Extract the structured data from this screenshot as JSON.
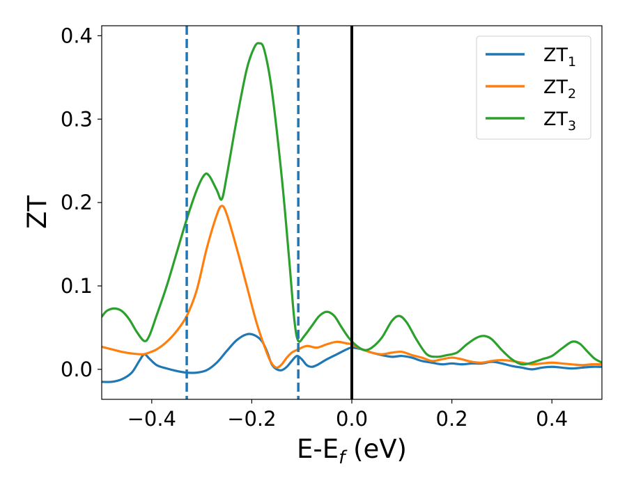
{
  "chart_data": {
    "type": "line",
    "xlabel": "E-E",
    "xlabel_sub": "f",
    "xlabel_unit": " (eV)",
    "ylabel": "ZT",
    "xlim": [
      -0.5,
      0.5
    ],
    "ylim": [
      -0.036,
      0.412
    ],
    "xticks": [
      -0.4,
      -0.2,
      0.0,
      0.2,
      0.4
    ],
    "xtick_labels": [
      "−0.4",
      "−0.2",
      "0.0",
      "0.2",
      "0.4"
    ],
    "yticks": [
      0.0,
      0.1,
      0.2,
      0.3,
      0.4
    ],
    "ytick_labels": [
      "0.0",
      "0.1",
      "0.2",
      "0.3",
      "0.4"
    ],
    "grid": false,
    "legend_position": "top-right",
    "vlines": [
      {
        "x": -0.33,
        "style": "dashed",
        "color": "#1f77b4"
      },
      {
        "x": -0.107,
        "style": "dashed",
        "color": "#1f77b4"
      },
      {
        "x": 0.0,
        "style": "solid",
        "color": "#000000"
      }
    ],
    "series": [
      {
        "name": "ZT",
        "name_sub": "1",
        "color": "#1f77b4",
        "points": [
          [
            -0.5,
            -0.015
          ],
          [
            -0.48,
            -0.015
          ],
          [
            -0.46,
            -0.012
          ],
          [
            -0.44,
            -0.004
          ],
          [
            -0.425,
            0.01
          ],
          [
            -0.415,
            0.018
          ],
          [
            -0.405,
            0.013
          ],
          [
            -0.39,
            0.005
          ],
          [
            -0.37,
            0.001
          ],
          [
            -0.35,
            -0.002
          ],
          [
            -0.33,
            -0.004
          ],
          [
            -0.31,
            -0.004
          ],
          [
            -0.29,
            -0.001
          ],
          [
            -0.27,
            0.008
          ],
          [
            -0.25,
            0.022
          ],
          [
            -0.23,
            0.035
          ],
          [
            -0.21,
            0.042
          ],
          [
            -0.195,
            0.041
          ],
          [
            -0.18,
            0.034
          ],
          [
            -0.17,
            0.022
          ],
          [
            -0.16,
            0.006
          ],
          [
            -0.15,
            0.0
          ],
          [
            -0.14,
            -0.001
          ],
          [
            -0.13,
            0.003
          ],
          [
            -0.12,
            0.01
          ],
          [
            -0.11,
            0.016
          ],
          [
            -0.1,
            0.012
          ],
          [
            -0.09,
            0.005
          ],
          [
            -0.08,
            0.003
          ],
          [
            -0.07,
            0.005
          ],
          [
            -0.05,
            0.012
          ],
          [
            -0.03,
            0.018
          ],
          [
            -0.01,
            0.024
          ],
          [
            0.0,
            0.026
          ],
          [
            0.02,
            0.024
          ],
          [
            0.04,
            0.02
          ],
          [
            0.06,
            0.017
          ],
          [
            0.08,
            0.015
          ],
          [
            0.1,
            0.016
          ],
          [
            0.12,
            0.014
          ],
          [
            0.14,
            0.01
          ],
          [
            0.16,
            0.008
          ],
          [
            0.18,
            0.006
          ],
          [
            0.2,
            0.007
          ],
          [
            0.22,
            0.006
          ],
          [
            0.24,
            0.007
          ],
          [
            0.26,
            0.007
          ],
          [
            0.28,
            0.009
          ],
          [
            0.3,
            0.007
          ],
          [
            0.32,
            0.004
          ],
          [
            0.34,
            0.002
          ],
          [
            0.36,
            0.0
          ],
          [
            0.38,
            0.002
          ],
          [
            0.4,
            0.003
          ],
          [
            0.42,
            0.002
          ],
          [
            0.44,
            0.001
          ],
          [
            0.46,
            0.002
          ],
          [
            0.48,
            0.003
          ],
          [
            0.5,
            0.003
          ]
        ]
      },
      {
        "name": "ZT",
        "name_sub": "2",
        "color": "#ff7f0e",
        "points": [
          [
            -0.5,
            0.027
          ],
          [
            -0.48,
            0.024
          ],
          [
            -0.46,
            0.021
          ],
          [
            -0.44,
            0.019
          ],
          [
            -0.42,
            0.018
          ],
          [
            -0.41,
            0.019
          ],
          [
            -0.39,
            0.024
          ],
          [
            -0.37,
            0.033
          ],
          [
            -0.35,
            0.046
          ],
          [
            -0.33,
            0.064
          ],
          [
            -0.31,
            0.095
          ],
          [
            -0.29,
            0.145
          ],
          [
            -0.27,
            0.185
          ],
          [
            -0.26,
            0.196
          ],
          [
            -0.25,
            0.186
          ],
          [
            -0.23,
            0.145
          ],
          [
            -0.21,
            0.1
          ],
          [
            -0.19,
            0.055
          ],
          [
            -0.17,
            0.02
          ],
          [
            -0.16,
            0.007
          ],
          [
            -0.15,
            0.002
          ],
          [
            -0.14,
            0.006
          ],
          [
            -0.13,
            0.014
          ],
          [
            -0.12,
            0.02
          ],
          [
            -0.107,
            0.024
          ],
          [
            -0.09,
            0.028
          ],
          [
            -0.07,
            0.026
          ],
          [
            -0.05,
            0.03
          ],
          [
            -0.03,
            0.033
          ],
          [
            -0.01,
            0.031
          ],
          [
            0.0,
            0.03
          ],
          [
            0.02,
            0.024
          ],
          [
            0.04,
            0.02
          ],
          [
            0.06,
            0.018
          ],
          [
            0.08,
            0.02
          ],
          [
            0.1,
            0.021
          ],
          [
            0.12,
            0.017
          ],
          [
            0.14,
            0.014
          ],
          [
            0.16,
            0.01
          ],
          [
            0.18,
            0.012
          ],
          [
            0.2,
            0.014
          ],
          [
            0.22,
            0.012
          ],
          [
            0.24,
            0.009
          ],
          [
            0.26,
            0.008
          ],
          [
            0.28,
            0.01
          ],
          [
            0.3,
            0.011
          ],
          [
            0.32,
            0.01
          ],
          [
            0.34,
            0.008
          ],
          [
            0.36,
            0.006
          ],
          [
            0.38,
            0.007
          ],
          [
            0.4,
            0.008
          ],
          [
            0.42,
            0.007
          ],
          [
            0.44,
            0.006
          ],
          [
            0.46,
            0.005
          ],
          [
            0.48,
            0.006
          ],
          [
            0.5,
            0.006
          ]
        ]
      },
      {
        "name": "ZT",
        "name_sub": "3",
        "color": "#2ca02c",
        "points": [
          [
            -0.5,
            0.063
          ],
          [
            -0.49,
            0.07
          ],
          [
            -0.475,
            0.073
          ],
          [
            -0.46,
            0.07
          ],
          [
            -0.445,
            0.06
          ],
          [
            -0.43,
            0.045
          ],
          [
            -0.415,
            0.034
          ],
          [
            -0.405,
            0.04
          ],
          [
            -0.39,
            0.065
          ],
          [
            -0.37,
            0.1
          ],
          [
            -0.35,
            0.14
          ],
          [
            -0.33,
            0.18
          ],
          [
            -0.31,
            0.215
          ],
          [
            -0.295,
            0.233
          ],
          [
            -0.285,
            0.232
          ],
          [
            -0.27,
            0.215
          ],
          [
            -0.26,
            0.204
          ],
          [
            -0.25,
            0.232
          ],
          [
            -0.23,
            0.3
          ],
          [
            -0.21,
            0.36
          ],
          [
            -0.195,
            0.386
          ],
          [
            -0.185,
            0.391
          ],
          [
            -0.175,
            0.383
          ],
          [
            -0.16,
            0.335
          ],
          [
            -0.14,
            0.23
          ],
          [
            -0.125,
            0.13
          ],
          [
            -0.115,
            0.06
          ],
          [
            -0.107,
            0.034
          ],
          [
            -0.095,
            0.04
          ],
          [
            -0.08,
            0.052
          ],
          [
            -0.065,
            0.064
          ],
          [
            -0.05,
            0.069
          ],
          [
            -0.035,
            0.064
          ],
          [
            -0.02,
            0.05
          ],
          [
            -0.005,
            0.037
          ],
          [
            0.01,
            0.028
          ],
          [
            0.025,
            0.023
          ],
          [
            0.04,
            0.026
          ],
          [
            0.06,
            0.038
          ],
          [
            0.08,
            0.058
          ],
          [
            0.095,
            0.064
          ],
          [
            0.11,
            0.056
          ],
          [
            0.13,
            0.035
          ],
          [
            0.15,
            0.018
          ],
          [
            0.17,
            0.015
          ],
          [
            0.19,
            0.017
          ],
          [
            0.21,
            0.02
          ],
          [
            0.23,
            0.03
          ],
          [
            0.25,
            0.038
          ],
          [
            0.265,
            0.04
          ],
          [
            0.28,
            0.036
          ],
          [
            0.3,
            0.023
          ],
          [
            0.32,
            0.012
          ],
          [
            0.34,
            0.006
          ],
          [
            0.36,
            0.008
          ],
          [
            0.38,
            0.012
          ],
          [
            0.4,
            0.016
          ],
          [
            0.42,
            0.025
          ],
          [
            0.44,
            0.033
          ],
          [
            0.455,
            0.031
          ],
          [
            0.47,
            0.022
          ],
          [
            0.485,
            0.013
          ],
          [
            0.5,
            0.008
          ]
        ]
      }
    ]
  }
}
